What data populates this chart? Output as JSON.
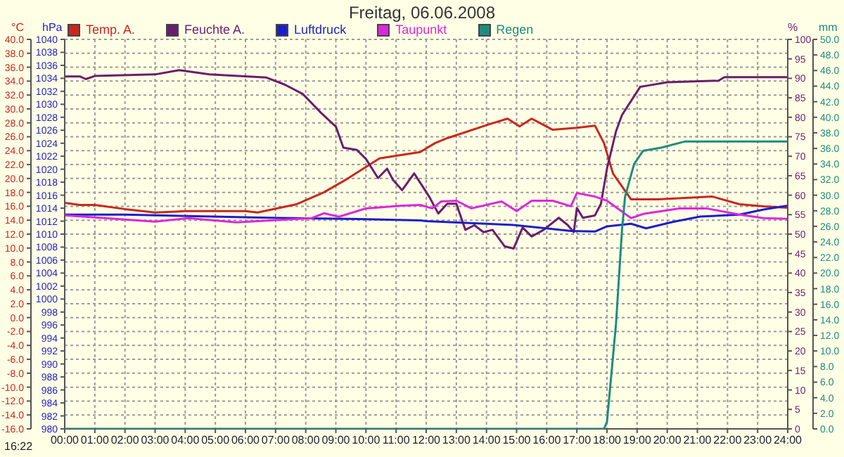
{
  "chart_data": [
    {
      "type": "line",
      "title": "Freitag, 06.06.2008",
      "ylabel": "°C",
      "y2label": "hPa",
      "y3label": "%",
      "xlim": [
        0,
        24
      ],
      "xticks": [
        {
          "value": 0,
          "label": "00:00"
        },
        {
          "value": 1,
          "label": "01:00"
        },
        {
          "value": 2,
          "label": "02:00"
        },
        {
          "value": 3,
          "label": "03:00"
        },
        {
          "value": 4,
          "label": "04:00"
        },
        {
          "value": 5,
          "label": "05:00"
        },
        {
          "value": 6,
          "label": "06:00"
        },
        {
          "value": 7,
          "label": "07:00"
        },
        {
          "value": 8,
          "label": "08:00"
        },
        {
          "value": 9,
          "label": "09:00"
        },
        {
          "value": 10,
          "label": "10:00"
        },
        {
          "value": 11,
          "label": "11:00"
        },
        {
          "value": 12,
          "label": "12:00"
        },
        {
          "value": 13,
          "label": "13:00"
        },
        {
          "value": 14,
          "label": "14:00"
        },
        {
          "value": 15,
          "label": "15:00"
        },
        {
          "value": 16,
          "label": "16:00"
        },
        {
          "value": 17,
          "label": "17:00"
        },
        {
          "value": 18,
          "label": "18:00"
        },
        {
          "value": 19,
          "label": "19:00"
        },
        {
          "value": 20,
          "label": "20:00"
        },
        {
          "value": 21,
          "label": "21:00"
        },
        {
          "value": 22,
          "label": "22:00"
        },
        {
          "value": 23,
          "label": "23:00"
        },
        {
          "value": 24,
          "label": "24:00"
        }
      ],
      "ylim": [
        -16,
        40
      ],
      "yticks": [
        {
          "value": -16,
          "label": "-16.0"
        },
        {
          "value": -14,
          "label": "-14.0"
        },
        {
          "value": -12,
          "label": "-12.0"
        },
        {
          "value": -10,
          "label": "-10.0"
        },
        {
          "value": -8,
          "label": "-8.0"
        },
        {
          "value": -6,
          "label": "-6.0"
        },
        {
          "value": -4,
          "label": "-4.0"
        },
        {
          "value": -2,
          "label": "-2.0"
        },
        {
          "value": 0,
          "label": "0.0"
        },
        {
          "value": 2,
          "label": "2.0"
        },
        {
          "value": 4,
          "label": "4.0"
        },
        {
          "value": 6,
          "label": "6.0"
        },
        {
          "value": 8,
          "label": "8.0"
        },
        {
          "value": 10,
          "label": "10.0"
        },
        {
          "value": 12,
          "label": "12.0"
        },
        {
          "value": 14,
          "label": "14.0"
        },
        {
          "value": 16,
          "label": "16.0"
        },
        {
          "value": 18,
          "label": "18.0"
        },
        {
          "value": 20,
          "label": "20.0"
        },
        {
          "value": 22,
          "label": "22.0"
        },
        {
          "value": 24,
          "label": "24.0"
        },
        {
          "value": 26,
          "label": "26.0"
        },
        {
          "value": 28,
          "label": "28.0"
        },
        {
          "value": 30,
          "label": "30.0"
        },
        {
          "value": 32,
          "label": "32.0"
        },
        {
          "value": 34,
          "label": "34.0"
        },
        {
          "value": 36,
          "label": "36.0"
        },
        {
          "value": 38,
          "label": "38.0"
        },
        {
          "value": 40,
          "label": "40.0"
        }
      ],
      "y2lim": [
        980,
        1040
      ],
      "y2ticks": [
        980,
        982,
        984,
        986,
        988,
        990,
        992,
        994,
        996,
        998,
        1000,
        1002,
        1004,
        1006,
        1008,
        1010,
        1012,
        1014,
        1016,
        1018,
        1020,
        1022,
        1024,
        1026,
        1028,
        1030,
        1032,
        1034,
        1036,
        1038,
        1040
      ],
      "y3lim": [
        0,
        100
      ],
      "y3ticks": [
        0,
        5,
        10,
        15,
        20,
        25,
        30,
        35,
        40,
        45,
        50,
        55,
        60,
        65,
        70,
        75,
        80,
        85,
        90,
        95,
        100
      ],
      "grid": true,
      "legend": "top left",
      "marker": "none",
      "line_style": "solid",
      "annotations": [
        "16:22"
      ],
      "series": [
        {
          "name": "Temp. A.",
          "color": "#c8281e",
          "x": [
            0,
            0.5,
            1,
            2,
            3,
            4,
            5,
            6,
            6.4,
            7.7,
            8.6,
            9.4,
            10.45,
            11.2,
            11.8,
            12.3,
            12.7,
            14.1,
            14.7,
            15.1,
            15.5,
            16.2,
            17,
            17.6,
            17.9,
            18.2,
            18.8,
            19.7,
            21.5,
            22.4,
            23.2,
            24
          ],
          "values": [
            16.5,
            16.2,
            16.2,
            15.6,
            15.1,
            15.3,
            15.3,
            15.3,
            15.1,
            16.3,
            18.0,
            20.0,
            22.9,
            23.4,
            23.8,
            25.1,
            25.8,
            27.8,
            28.6,
            27.5,
            28.6,
            27.0,
            27.3,
            27.6,
            25.1,
            20.7,
            17.0,
            17.0,
            17.4,
            16.3,
            16.0,
            15.8
          ]
        },
        {
          "name": "Feuchte A.",
          "color": "#6a1e6e",
          "axis": "y3",
          "x": [
            0,
            0.5,
            0.7,
            1,
            3,
            3.8,
            4.8,
            6.7,
            7.3,
            7.9,
            8.5,
            9.0,
            9.25,
            9.7,
            10.0,
            10.4,
            10.7,
            10.9,
            11.2,
            11.6,
            12.0,
            12.1,
            12.4,
            12.7,
            13.0,
            13.3,
            13.6,
            13.9,
            14.2,
            14.6,
            14.9,
            15.2,
            15.5,
            15.9,
            16.4,
            16.7,
            16.9,
            17.0,
            17.2,
            17.6,
            17.8,
            18.0,
            18.3,
            18.5,
            19.1,
            19.4,
            20.0,
            21.7,
            21.9,
            24
          ],
          "values": [
            90.5,
            90.5,
            89.8,
            90.6,
            91.0,
            92.1,
            91.0,
            90.2,
            88.4,
            86.0,
            81.2,
            77.6,
            72.2,
            71.6,
            69.3,
            64.4,
            66.8,
            63.9,
            61.3,
            65.6,
            60.8,
            59.6,
            55.3,
            57.8,
            57.8,
            51.1,
            52.3,
            50.5,
            51.1,
            46.9,
            46.3,
            51.7,
            49.4,
            51.1,
            54.2,
            52.3,
            50.5,
            56.7,
            54.2,
            54.8,
            57.8,
            66.8,
            76.4,
            80.6,
            87.8,
            88.2,
            89.0,
            89.4,
            90.3,
            90.3
          ]
        },
        {
          "name": "Luftdruck",
          "color": "#1e1ec8",
          "axis": "y2",
          "x": [
            0,
            2,
            7.1,
            10.0,
            11.8,
            12.0,
            14.9,
            16.8,
            17.6,
            18.0,
            18.8,
            19.3,
            20.2,
            21.1,
            22.4,
            23.2,
            24
          ],
          "values": [
            1013.0,
            1013.0,
            1012.5,
            1012.3,
            1012.1,
            1012.0,
            1011.4,
            1010.5,
            1010.4,
            1011.2,
            1011.6,
            1010.9,
            1011.9,
            1012.7,
            1013.0,
            1013.8,
            1014.4
          ]
        },
        {
          "name": "Taupunkt",
          "color": "#dc28dc",
          "x": [
            0,
            3.0,
            4.1,
            5.7,
            8.2,
            8.6,
            9.1,
            10.0,
            11.2,
            11.8,
            12.2,
            12.5,
            13.0,
            13.5,
            14.5,
            15.0,
            15.5,
            16.2,
            16.8,
            17.0,
            17.6,
            18.0,
            18.8,
            19.2,
            20.4,
            21.3,
            22.4,
            23.2,
            24
          ],
          "values": [
            14.7,
            13.8,
            14.3,
            13.7,
            14.3,
            15.0,
            14.5,
            15.7,
            16.1,
            16.2,
            15.7,
            16.7,
            16.8,
            15.7,
            16.7,
            15.3,
            16.8,
            16.8,
            16.0,
            17.9,
            17.4,
            16.8,
            14.3,
            14.9,
            15.7,
            15.7,
            14.8,
            14.3,
            14.2
          ]
        }
      ]
    },
    {
      "type": "line",
      "ylabel": "mm",
      "xlim": [
        0,
        24
      ],
      "ylim": [
        0,
        50
      ],
      "tick_labels": "y",
      "marker": "none",
      "line_style": "solid",
      "yticks": [
        {
          "value": 0,
          "label": "0.0"
        },
        {
          "value": 2,
          "label": "2.0"
        },
        {
          "value": 4,
          "label": "4.0"
        },
        {
          "value": 6,
          "label": "6.0"
        },
        {
          "value": 8,
          "label": "8.0"
        },
        {
          "value": 10,
          "label": "10.0"
        },
        {
          "value": 12,
          "label": "12.0"
        },
        {
          "value": 14,
          "label": "14.0"
        },
        {
          "value": 16,
          "label": "16.0"
        },
        {
          "value": 18,
          "label": "18.0"
        },
        {
          "value": 20,
          "label": "20.0"
        },
        {
          "value": 22,
          "label": "22.0"
        },
        {
          "value": 24,
          "label": "24.0"
        },
        {
          "value": 26,
          "label": "26.0"
        },
        {
          "value": 28,
          "label": "28.0"
        },
        {
          "value": 30,
          "label": "30.0"
        },
        {
          "value": 32,
          "label": "32.0"
        },
        {
          "value": 34,
          "label": "34.0"
        },
        {
          "value": 36,
          "label": "36.0"
        },
        {
          "value": 38,
          "label": "38.0"
        },
        {
          "value": 40,
          "label": "40.0"
        },
        {
          "value": 42,
          "label": "42.0"
        },
        {
          "value": 44,
          "label": "44.0"
        },
        {
          "value": 46,
          "label": "46.0"
        },
        {
          "value": 48,
          "label": "48.0"
        },
        {
          "value": 50,
          "label": "50.0"
        }
      ],
      "series": [
        {
          "name": "Regen",
          "color": "#1e8c7c",
          "x": [
            0,
            17.9,
            18.0,
            18.3,
            18.5,
            18.6,
            18.9,
            19.2,
            19.8,
            20.6,
            24
          ],
          "values": [
            0,
            0,
            0.9,
            13.5,
            25.6,
            29.8,
            34.0,
            35.7,
            36.1,
            36.9,
            36.9
          ]
        }
      ]
    }
  ]
}
